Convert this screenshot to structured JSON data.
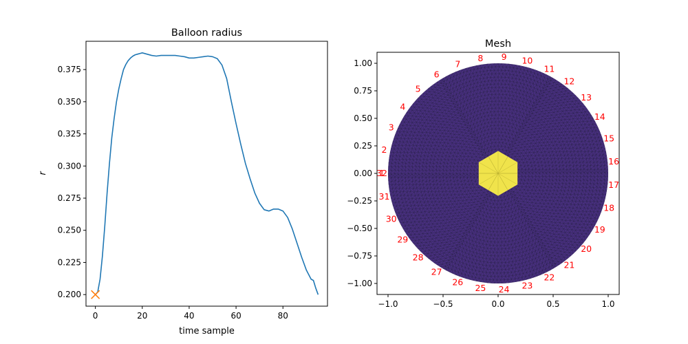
{
  "chart_data": [
    {
      "type": "line",
      "title": "Balloon radius",
      "xlabel": "time sample",
      "ylabel": "r",
      "xlim": [
        -4,
        99
      ],
      "ylim": [
        0.191,
        0.397
      ],
      "xticks": [
        0,
        20,
        40,
        60,
        80
      ],
      "yticks": [
        0.2,
        0.225,
        0.25,
        0.275,
        0.3,
        0.325,
        0.35,
        0.375
      ],
      "xtick_labels": [
        "0",
        "20",
        "40",
        "60",
        "80"
      ],
      "ytick_labels": [
        "0.200",
        "0.225",
        "0.250",
        "0.275",
        "0.300",
        "0.325",
        "0.350",
        "0.375"
      ],
      "grid": false,
      "line_color": "#1f77b4",
      "marker_color": "#ff7f0e",
      "series": [
        {
          "x": [
            0,
            1,
            2,
            3,
            4,
            5,
            6,
            7,
            8,
            9,
            10,
            11,
            12,
            13,
            14,
            15,
            16,
            17,
            18,
            19,
            20,
            22,
            24,
            26,
            28,
            30,
            32,
            34,
            36,
            38,
            40,
            42,
            44,
            46,
            48,
            50,
            52,
            54,
            56,
            58,
            60,
            62,
            64,
            66,
            68,
            70,
            72,
            74,
            76,
            78,
            80,
            82,
            84,
            86,
            88,
            90,
            92,
            93,
            94,
            95
          ],
          "y": [
            0.2,
            0.202,
            0.212,
            0.23,
            0.253,
            0.279,
            0.302,
            0.322,
            0.337,
            0.35,
            0.36,
            0.368,
            0.375,
            0.379,
            0.382,
            0.384,
            0.3855,
            0.3865,
            0.387,
            0.3875,
            0.388,
            0.387,
            0.386,
            0.3855,
            0.386,
            0.386,
            0.386,
            0.386,
            0.3855,
            0.385,
            0.384,
            0.384,
            0.3845,
            0.385,
            0.3855,
            0.385,
            0.3835,
            0.3785,
            0.368,
            0.35,
            0.333,
            0.317,
            0.302,
            0.29,
            0.279,
            0.271,
            0.266,
            0.265,
            0.2665,
            0.2665,
            0.265,
            0.26,
            0.251,
            0.24,
            0.229,
            0.219,
            0.212,
            0.211,
            0.205,
            0.2
          ]
        }
      ],
      "markers": [
        {
          "x": 0,
          "y": 0.2,
          "symbol": "x"
        }
      ]
    },
    {
      "type": "heatmap",
      "title": "Mesh",
      "xlim": [
        -1.1,
        1.1
      ],
      "ylim": [
        -1.1,
        1.1
      ],
      "xticks": [
        -1.0,
        -0.5,
        0.0,
        0.5,
        1.0
      ],
      "yticks": [
        -1.0,
        -0.75,
        -0.5,
        -0.25,
        0.0,
        0.25,
        0.5,
        0.75,
        1.0
      ],
      "xtick_labels": [
        "−1.0",
        "−0.5",
        "0.0",
        "0.5",
        "1.0"
      ],
      "ytick_labels": [
        "−1.00",
        "−0.75",
        "−0.50",
        "−0.25",
        "0.00",
        "0.25",
        "0.50",
        "0.75",
        "1.00"
      ],
      "domain_radius": 1.0,
      "inclusion_radius": 0.2,
      "background_color": "#472f7d",
      "inclusion_color": "#f0e34b",
      "edge_color": "#1a1a2e",
      "electrode_color": "#ff0000",
      "electrodes": [
        {
          "label": "1",
          "angle_deg": 180
        },
        {
          "label": "2",
          "angle_deg": 168.39
        },
        {
          "label": "3",
          "angle_deg": 156.77
        },
        {
          "label": "4",
          "angle_deg": 145.16
        },
        {
          "label": "5",
          "angle_deg": 133.55
        },
        {
          "label": "6",
          "angle_deg": 121.94
        },
        {
          "label": "7",
          "angle_deg": 110.32
        },
        {
          "label": "8",
          "angle_deg": 98.71
        },
        {
          "label": "9",
          "angle_deg": 87.1
        },
        {
          "label": "10",
          "angle_deg": 75.48
        },
        {
          "label": "11",
          "angle_deg": 63.87
        },
        {
          "label": "12",
          "angle_deg": 52.26
        },
        {
          "label": "13",
          "angle_deg": 40.65
        },
        {
          "label": "14",
          "angle_deg": 29.03
        },
        {
          "label": "15",
          "angle_deg": 17.42
        },
        {
          "label": "16",
          "angle_deg": 5.81
        },
        {
          "label": "17",
          "angle_deg": -5.81
        },
        {
          "label": "18",
          "angle_deg": -17.42
        },
        {
          "label": "19",
          "angle_deg": -29.03
        },
        {
          "label": "20",
          "angle_deg": -40.65
        },
        {
          "label": "21",
          "angle_deg": -52.26
        },
        {
          "label": "22",
          "angle_deg": -63.87
        },
        {
          "label": "23",
          "angle_deg": -75.48
        },
        {
          "label": "24",
          "angle_deg": -87.1
        },
        {
          "label": "25",
          "angle_deg": -98.71
        },
        {
          "label": "26",
          "angle_deg": -110.32
        },
        {
          "label": "27",
          "angle_deg": -121.94
        },
        {
          "label": "28",
          "angle_deg": -133.55
        },
        {
          "label": "29",
          "angle_deg": -145.16
        },
        {
          "label": "30",
          "angle_deg": -156.77
        },
        {
          "label": "31",
          "angle_deg": -168.39
        },
        {
          "label": "32",
          "angle_deg": -180
        }
      ]
    }
  ]
}
